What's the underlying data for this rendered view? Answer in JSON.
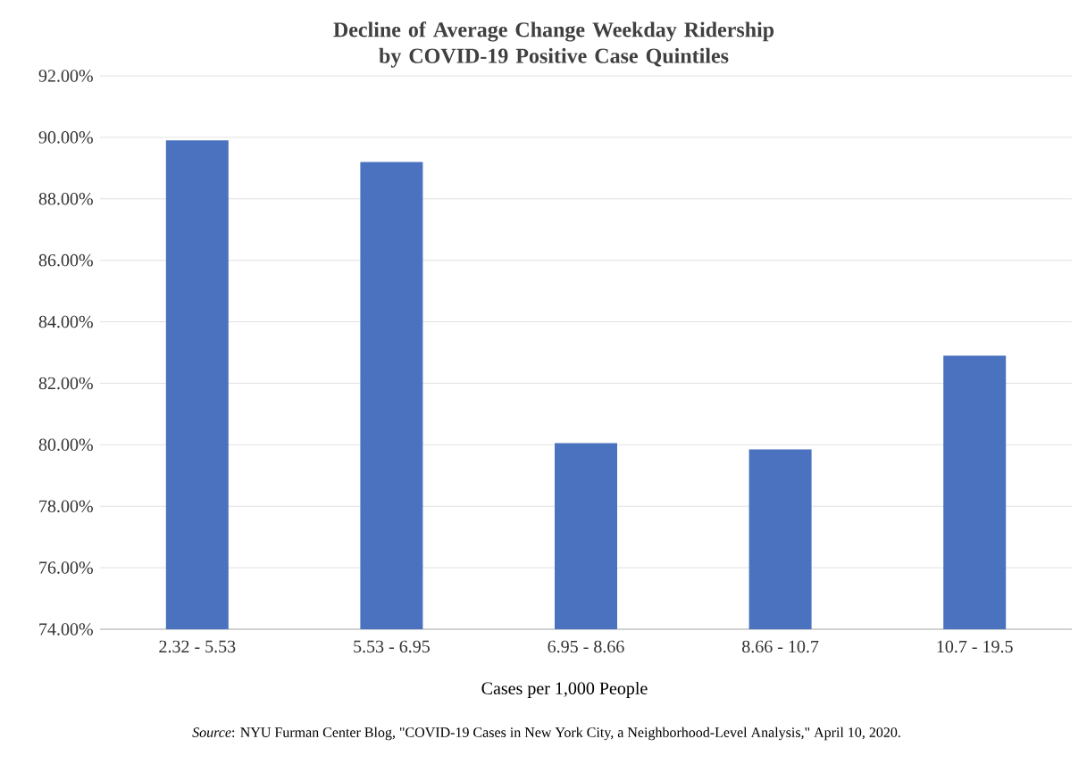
{
  "chart_data": {
    "type": "bar",
    "title": "Decline of Average Change Weekday Ridership by COVID-19 Positive Case Quintiles",
    "xlabel": "Cases per 1,000 People",
    "categories": [
      "2.32 - 5.53",
      "5.53 - 6.95",
      "6.95 - 8.66",
      "8.66 - 10.7",
      "10.7 - 19.5"
    ],
    "values": [
      89.9,
      89.2,
      80.05,
      79.85,
      82.9
    ],
    "color": "#4a72bf",
    "ylim": [
      74,
      92
    ],
    "yticks": [
      {
        "value": 74,
        "label": "74.00%"
      },
      {
        "value": 76,
        "label": "76.00%"
      },
      {
        "value": 78,
        "label": "78.00%"
      },
      {
        "value": 80,
        "label": "80.00%"
      },
      {
        "value": 82,
        "label": "82.00%"
      },
      {
        "value": 84,
        "label": "84.00%"
      },
      {
        "value": 86,
        "label": "86.00%"
      },
      {
        "value": 88,
        "label": "88.00%"
      },
      {
        "value": 90,
        "label": "90.00%"
      },
      {
        "value": 92,
        "label": "92.00%"
      }
    ],
    "grid": "y",
    "annotations": [
      "*Source*: NYU Furman Center Blog, \"COVID-19 Cases in New York City, a Neighborhood-Level Analysis,\" April 10, 2020."
    ]
  }
}
